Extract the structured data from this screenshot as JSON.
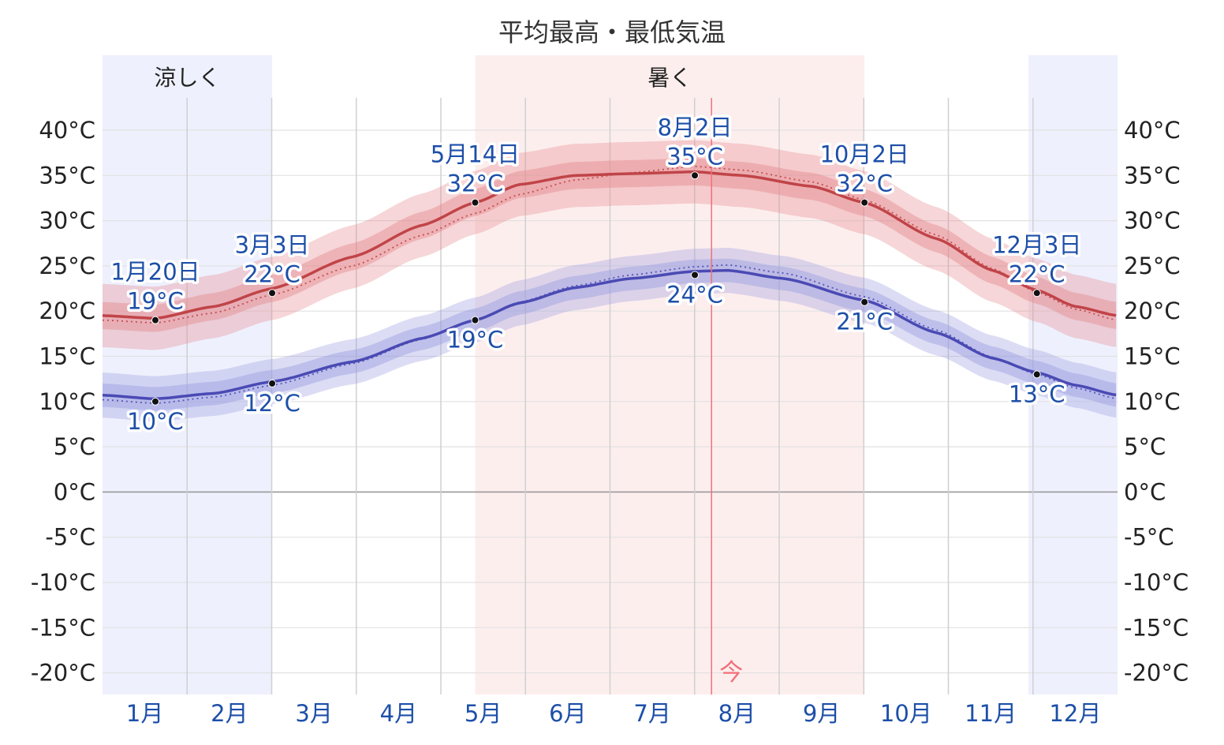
{
  "chart_data": {
    "type": "line",
    "title": "平均最高・最低気温",
    "y_unit": "°C",
    "ylim": [
      -22,
      45
    ],
    "yticks": [
      40,
      35,
      30,
      25,
      20,
      15,
      10,
      5,
      0,
      -5,
      -10,
      -15,
      -20
    ],
    "ytick_labels": [
      "40°C",
      "35°C",
      "30°C",
      "25°C",
      "20°C",
      "15°C",
      "10°C",
      "5°C",
      "0°C",
      "-5°C",
      "-10°C",
      "-15°C",
      "-20°C"
    ],
    "months": [
      "1月",
      "2月",
      "3月",
      "4月",
      "5月",
      "6月",
      "7月",
      "8月",
      "9月",
      "10月",
      "11月",
      "12月"
    ],
    "seasons": [
      {
        "label": "涼しく",
        "start_day": 0,
        "end_day": 61,
        "color": "#eef0fd"
      },
      {
        "label": "",
        "start_day": 333,
        "end_day": 365,
        "color": "#eef0fd"
      },
      {
        "label": "暑く",
        "start_day": 134,
        "end_day": 274,
        "color": "#fdeeee"
      }
    ],
    "today_day": 219,
    "today_label": "今",
    "series": [
      {
        "key": "high",
        "color": "#c04448",
        "band_color": "#e48a8e",
        "keypoints": [
          [
            0,
            19.5
          ],
          [
            19,
            19.2
          ],
          [
            40,
            20.5
          ],
          [
            61,
            22.5
          ],
          [
            90,
            26.0
          ],
          [
            115,
            29.5
          ],
          [
            134,
            32.0
          ],
          [
            150,
            34.0
          ],
          [
            170,
            35.0
          ],
          [
            190,
            35.2
          ],
          [
            213,
            35.4
          ],
          [
            230,
            35.0
          ],
          [
            255,
            33.8
          ],
          [
            274,
            32.0
          ],
          [
            300,
            28.0
          ],
          [
            320,
            24.5
          ],
          [
            336,
            22.3
          ],
          [
            350,
            20.5
          ],
          [
            365,
            19.5
          ]
        ],
        "normal_keypoints": [
          [
            0,
            19.0
          ],
          [
            19,
            18.7
          ],
          [
            40,
            19.8
          ],
          [
            61,
            21.8
          ],
          [
            90,
            25.0
          ],
          [
            115,
            28.4
          ],
          [
            134,
            30.8
          ],
          [
            150,
            32.9
          ],
          [
            170,
            34.5
          ],
          [
            190,
            35.3
          ],
          [
            213,
            36.0
          ],
          [
            230,
            35.6
          ],
          [
            255,
            34.3
          ],
          [
            274,
            32.3
          ],
          [
            300,
            28.4
          ],
          [
            320,
            24.7
          ],
          [
            336,
            22.1
          ],
          [
            350,
            20.2
          ],
          [
            365,
            19.0
          ]
        ],
        "band_inner": 1.5,
        "band_outer": 3.5,
        "points": [
          {
            "day": 19,
            "value": 19,
            "date": "1月20日",
            "label": "19°C",
            "pos": "above"
          },
          {
            "day": 61,
            "value": 22,
            "date": "3月3日",
            "label": "22°C",
            "pos": "above"
          },
          {
            "day": 134,
            "value": 32,
            "date": "5月14日",
            "label": "32°C",
            "pos": "above"
          },
          {
            "day": 213,
            "value": 35,
            "date": "8月2日",
            "label": "35°C",
            "pos": "above"
          },
          {
            "day": 274,
            "value": 32,
            "date": "10月2日",
            "label": "32°C",
            "pos": "above"
          },
          {
            "day": 336,
            "value": 22,
            "date": "12月3日",
            "label": "22°C",
            "pos": "above"
          }
        ]
      },
      {
        "key": "low",
        "color": "#4a4ab4",
        "band_color": "#9a9ee0",
        "keypoints": [
          [
            0,
            10.7
          ],
          [
            19,
            10.3
          ],
          [
            40,
            10.9
          ],
          [
            61,
            12.2
          ],
          [
            90,
            14.4
          ],
          [
            115,
            17.0
          ],
          [
            134,
            19.0
          ],
          [
            150,
            20.9
          ],
          [
            170,
            22.6
          ],
          [
            190,
            23.6
          ],
          [
            213,
            24.4
          ],
          [
            225,
            24.5
          ],
          [
            245,
            23.6
          ],
          [
            274,
            21.2
          ],
          [
            300,
            17.6
          ],
          [
            320,
            14.8
          ],
          [
            336,
            13.2
          ],
          [
            350,
            11.8
          ],
          [
            365,
            10.7
          ]
        ],
        "normal_keypoints": [
          [
            0,
            10.2
          ],
          [
            19,
            9.8
          ],
          [
            40,
            10.5
          ],
          [
            61,
            11.8
          ],
          [
            90,
            14.2
          ],
          [
            115,
            16.9
          ],
          [
            134,
            19.0
          ],
          [
            150,
            21.0
          ],
          [
            170,
            22.8
          ],
          [
            190,
            24.0
          ],
          [
            213,
            24.9
          ],
          [
            225,
            25.1
          ],
          [
            245,
            24.2
          ],
          [
            274,
            21.6
          ],
          [
            300,
            17.9
          ],
          [
            320,
            14.9
          ],
          [
            336,
            13.0
          ],
          [
            350,
            11.5
          ],
          [
            365,
            10.3
          ]
        ],
        "band_inner": 1.3,
        "band_outer": 2.5,
        "points": [
          {
            "day": 19,
            "value": 10,
            "label": "10°C",
            "pos": "below"
          },
          {
            "day": 61,
            "value": 12,
            "label": "12°C",
            "pos": "below"
          },
          {
            "day": 134,
            "value": 19,
            "label": "19°C",
            "pos": "below"
          },
          {
            "day": 213,
            "value": 24,
            "label": "24°C",
            "pos": "below"
          },
          {
            "day": 274,
            "value": 21,
            "label": "21°C",
            "pos": "below"
          },
          {
            "day": 336,
            "value": 13,
            "label": "13°C",
            "pos": "below"
          }
        ]
      }
    ]
  }
}
